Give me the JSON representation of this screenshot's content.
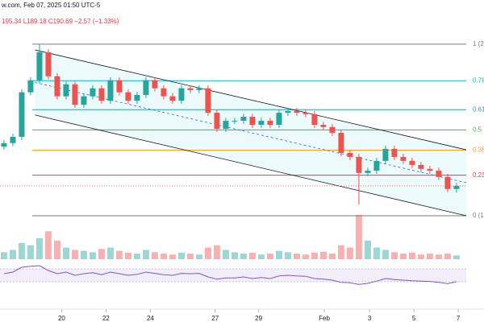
{
  "chart_data": {
    "type": "candlestick",
    "title": "w.com, Feb 07, 2025 01:50 UTC-5",
    "subtitle": "195.34 L189.18 C190.69 −2.57 (−1.33%)",
    "open": [
      199.5,
      200.3,
      201.7,
      211.7,
      214.4,
      220.7,
      215.3,
      210.8,
      213.5,
      208.9,
      210.8,
      212.6,
      209.8,
      214.4,
      211.7,
      209.8,
      211.1,
      214.4,
      212.6,
      210.8,
      209.8,
      212.6,
      212.2,
      212.6,
      207.1,
      203.5,
      205.3,
      205.3,
      206.2,
      204.4,
      205.3,
      204.4,
      207.1,
      207.5,
      207.1,
      206.8,
      204.4,
      203.9,
      202.6,
      198.1,
      197.2,
      193.6,
      194.1,
      196.3,
      199.0,
      197.2,
      196.3,
      195.4,
      194.5,
      194.1,
      192.7,
      190.0
    ],
    "high": [
      201.0,
      202.4,
      212.4,
      215.1,
      222.5,
      221.4,
      216.0,
      214.2,
      214.2,
      211.5,
      213.3,
      213.3,
      215.1,
      215.1,
      212.4,
      211.8,
      215.1,
      215.1,
      213.3,
      211.5,
      213.3,
      213.3,
      213.3,
      213.3,
      207.8,
      206.0,
      206.0,
      206.9,
      206.9,
      206.0,
      206.0,
      207.8,
      208.2,
      208.2,
      207.8,
      207.5,
      205.1,
      204.6,
      203.3,
      198.8,
      197.9,
      194.8,
      197.0,
      199.7,
      199.7,
      197.9,
      197.0,
      196.1,
      195.2,
      194.8,
      193.4,
      191.4
    ],
    "low": [
      198.8,
      199.6,
      201.0,
      211.0,
      213.7,
      214.6,
      210.1,
      210.1,
      208.2,
      208.2,
      210.1,
      209.1,
      209.1,
      211.0,
      209.1,
      209.1,
      210.4,
      211.9,
      210.1,
      209.1,
      209.1,
      211.5,
      211.5,
      206.4,
      202.8,
      202.8,
      204.6,
      204.6,
      203.7,
      203.7,
      203.7,
      203.7,
      206.4,
      206.4,
      206.1,
      203.7,
      203.2,
      201.9,
      197.4,
      196.5,
      186.5,
      192.9,
      193.4,
      195.6,
      196.5,
      195.6,
      194.7,
      193.8,
      193.4,
      192.0,
      189.3,
      189.18
    ],
    "close": [
      200.3,
      201.7,
      211.7,
      214.4,
      220.7,
      215.3,
      210.8,
      213.5,
      208.9,
      210.8,
      212.6,
      209.8,
      214.4,
      211.7,
      209.8,
      211.1,
      214.4,
      212.6,
      210.8,
      209.8,
      212.6,
      212.2,
      212.6,
      207.1,
      203.5,
      205.3,
      205.3,
      206.2,
      204.4,
      205.3,
      204.4,
      207.1,
      207.5,
      207.1,
      206.8,
      204.4,
      203.9,
      202.6,
      198.1,
      197.2,
      193.6,
      194.1,
      196.3,
      199.0,
      197.2,
      196.3,
      195.4,
      194.5,
      194.1,
      192.7,
      190.0,
      190.69
    ],
    "volume": [
      15,
      20,
      35,
      30,
      45,
      60,
      40,
      25,
      20,
      18,
      15,
      22,
      25,
      18,
      14,
      12,
      20,
      15,
      12,
      10,
      14,
      12,
      10,
      25,
      30,
      20,
      15,
      12,
      14,
      10,
      12,
      18,
      15,
      12,
      10,
      14,
      16,
      12,
      30,
      25,
      95,
      40,
      25,
      20,
      15,
      12,
      14,
      10,
      12,
      10,
      12,
      8
    ],
    "rsi": {
      "values": [
        55,
        60,
        75,
        78,
        80,
        65,
        55,
        60,
        50,
        55,
        58,
        52,
        60,
        55,
        50,
        53,
        60,
        56,
        52,
        50,
        56,
        55,
        56,
        45,
        38,
        42,
        42,
        45,
        40,
        43,
        40,
        48,
        50,
        48,
        47,
        40,
        38,
        35,
        28,
        27,
        22,
        25,
        32,
        40,
        37,
        35,
        33,
        32,
        31,
        28,
        24,
        30
      ],
      "ylim": [
        0,
        100
      ],
      "levels": [
        30,
        70
      ],
      "color": "#7e57c2"
    },
    "up_color": "#26a69a",
    "down_color": "#ef5350",
    "ylim": [
      174.6,
      228.8
    ],
    "xlim": [
      -0.45,
      54.1
    ],
    "xticks": [
      {
        "value": 6.5,
        "label": "20"
      },
      {
        "value": 11.5,
        "label": "22"
      },
      {
        "value": 16.5,
        "label": "24"
      },
      {
        "value": 23.8,
        "label": "27"
      },
      {
        "value": 28.7,
        "label": "29"
      },
      {
        "value": 36.1,
        "label": "Feb"
      },
      {
        "value": 41.2,
        "label": "3"
      },
      {
        "value": 46.2,
        "label": "5"
      },
      {
        "value": 51.2,
        "label": "7"
      }
    ],
    "fib_levels": [
      {
        "value": 222.5,
        "label": "1 (2",
        "color": "#787b86"
      },
      {
        "value": 214.3,
        "label": "0.78",
        "color": "#00bcd4"
      },
      {
        "value": 207.8,
        "label": "0.61",
        "color": "#26a69a"
      },
      {
        "value": 203.25,
        "label": "0.5 (",
        "color": "#4caf50"
      },
      {
        "value": 198.7,
        "label": "0.38",
        "color": "#ff9800"
      },
      {
        "value": 193.09,
        "label": "0.23",
        "color": "#f23645"
      },
      {
        "value": 184.0,
        "label": "0 (1",
        "color": "#787b86"
      }
    ],
    "channel": {
      "upper": [
        221.2,
        198.8
      ],
      "lower": [
        206.6,
        184.0
      ],
      "color": "#131722"
    }
  }
}
